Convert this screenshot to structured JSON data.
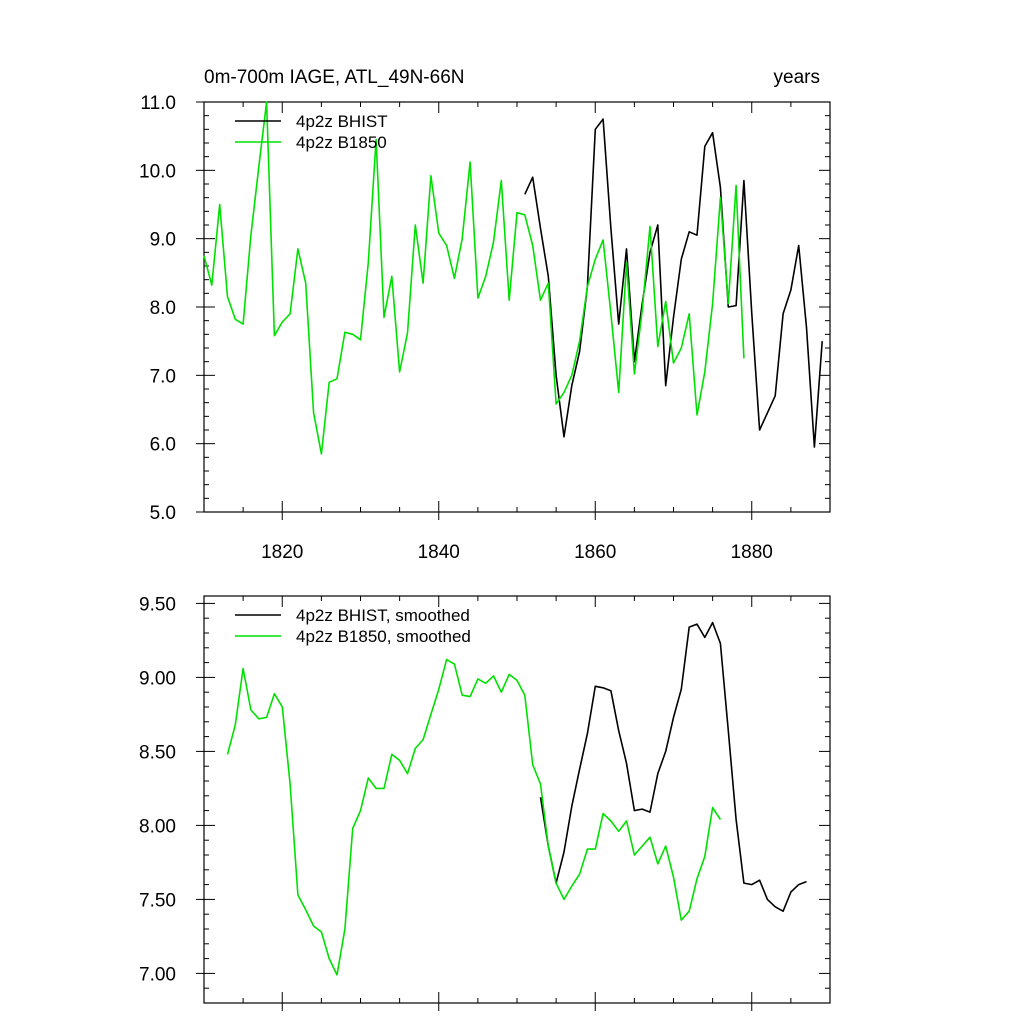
{
  "chart_data": [
    {
      "type": "line",
      "title": "0m-700m IAGE, ATL_49N-66N",
      "title_right": "years",
      "xlim": [
        1810,
        1890
      ],
      "ylim": [
        5.0,
        11.0
      ],
      "x_ticks": [
        1820,
        1840,
        1860,
        1880
      ],
      "y_ticks": [
        5.0,
        6.0,
        7.0,
        8.0,
        9.0,
        10.0,
        11.0
      ],
      "y_tick_decimals": 1,
      "legend_position": "top-left",
      "series": [
        {
          "name": "4p2z BHIST",
          "color": "#000000",
          "x": [
            1851,
            1852,
            1853,
            1854,
            1855,
            1856,
            1857,
            1858,
            1859,
            1860,
            1861,
            1862,
            1863,
            1864,
            1865,
            1866,
            1867,
            1868,
            1869,
            1870,
            1871,
            1872,
            1873,
            1874,
            1875,
            1876,
            1877,
            1878,
            1879,
            1880,
            1881,
            1882,
            1883,
            1884,
            1885,
            1886,
            1887,
            1888,
            1889
          ],
          "y": [
            9.65,
            9.9,
            9.15,
            8.45,
            7.0,
            6.1,
            6.85,
            7.35,
            8.3,
            10.6,
            10.75,
            9.15,
            7.75,
            8.85,
            7.2,
            8.05,
            8.8,
            9.2,
            6.85,
            7.85,
            8.7,
            9.1,
            9.05,
            10.35,
            10.55,
            9.75,
            8.0,
            8.02,
            9.85,
            7.9,
            6.2,
            6.45,
            6.7,
            7.9,
            8.25,
            8.9,
            7.7,
            5.95,
            7.5
          ]
        },
        {
          "name": "4p2z B1850",
          "color": "#00e000",
          "x": [
            1810,
            1811,
            1812,
            1813,
            1814,
            1815,
            1816,
            1817,
            1818,
            1819,
            1820,
            1821,
            1822,
            1823,
            1824,
            1825,
            1826,
            1827,
            1828,
            1829,
            1830,
            1831,
            1832,
            1833,
            1834,
            1835,
            1836,
            1837,
            1838,
            1839,
            1840,
            1841,
            1842,
            1843,
            1844,
            1845,
            1846,
            1847,
            1848,
            1849,
            1850,
            1851,
            1852,
            1853,
            1854,
            1855,
            1856,
            1857,
            1858,
            1859,
            1860,
            1861,
            1862,
            1863,
            1864,
            1865,
            1866,
            1867,
            1868,
            1869,
            1870,
            1871,
            1872,
            1873,
            1874,
            1875,
            1876,
            1877,
            1878,
            1879
          ],
          "y": [
            8.75,
            8.32,
            9.5,
            8.15,
            7.82,
            7.75,
            9.05,
            10.05,
            11.0,
            7.58,
            7.78,
            7.9,
            8.85,
            8.35,
            6.45,
            5.85,
            6.9,
            6.95,
            7.63,
            7.6,
            7.52,
            8.65,
            10.45,
            7.85,
            8.45,
            7.05,
            7.62,
            9.2,
            8.35,
            9.92,
            9.08,
            8.9,
            8.42,
            9.0,
            10.12,
            8.13,
            8.45,
            8.95,
            9.85,
            8.1,
            9.38,
            9.35,
            8.9,
            8.1,
            8.35,
            6.58,
            6.75,
            7.0,
            7.5,
            8.3,
            8.7,
            8.98,
            7.9,
            6.75,
            8.65,
            7.02,
            7.95,
            9.18,
            7.42,
            8.08,
            7.18,
            7.4,
            7.9,
            6.42,
            7.05,
            8.05,
            9.6,
            8.05,
            9.78,
            7.25
          ]
        }
      ]
    },
    {
      "type": "line",
      "xlim": [
        1810,
        1890
      ],
      "ylim": [
        6.8,
        9.55
      ],
      "x_ticks": [
        1820,
        1840,
        1860,
        1880
      ],
      "x_tick_labels_shown": false,
      "y_ticks": [
        7.0,
        7.5,
        8.0,
        8.5,
        9.0,
        9.5
      ],
      "y_tick_decimals": 2,
      "legend_position": "top-left",
      "series": [
        {
          "name": "4p2z BHIST, smoothed",
          "color": "#000000",
          "x": [
            1853,
            1854,
            1855,
            1856,
            1857,
            1858,
            1859,
            1860,
            1861,
            1862,
            1863,
            1864,
            1865,
            1866,
            1867,
            1868,
            1869,
            1870,
            1871,
            1872,
            1873,
            1874,
            1875,
            1876,
            1877,
            1878,
            1879,
            1880,
            1881,
            1882,
            1883,
            1884,
            1885,
            1886,
            1887
          ],
          "y": [
            8.19,
            7.86,
            7.61,
            7.82,
            8.13,
            8.38,
            8.62,
            8.94,
            8.93,
            8.91,
            8.64,
            8.42,
            8.1,
            8.11,
            8.09,
            8.35,
            8.5,
            8.73,
            8.92,
            9.34,
            9.36,
            9.27,
            9.37,
            9.23,
            8.64,
            8.04,
            7.61,
            7.6,
            7.63,
            7.5,
            7.45,
            7.42,
            7.55,
            7.6,
            7.62
          ]
        },
        {
          "name": "4p2z B1850, smoothed",
          "color": "#00e000",
          "x": [
            1813,
            1814,
            1815,
            1816,
            1817,
            1818,
            1819,
            1820,
            1821,
            1822,
            1823,
            1824,
            1825,
            1826,
            1827,
            1828,
            1829,
            1830,
            1831,
            1832,
            1833,
            1834,
            1835,
            1836,
            1837,
            1838,
            1839,
            1840,
            1841,
            1842,
            1843,
            1844,
            1845,
            1846,
            1847,
            1848,
            1849,
            1850,
            1851,
            1852,
            1853,
            1854,
            1855,
            1856,
            1857,
            1858,
            1859,
            1860,
            1861,
            1862,
            1863,
            1864,
            1865,
            1866,
            1867,
            1868,
            1869,
            1870,
            1871,
            1872,
            1873,
            1874,
            1875,
            1876
          ],
          "y": [
            8.48,
            8.68,
            9.06,
            8.78,
            8.72,
            8.73,
            8.89,
            8.8,
            8.28,
            7.53,
            7.43,
            7.32,
            7.28,
            7.1,
            6.99,
            7.3,
            7.98,
            8.1,
            8.32,
            8.25,
            8.25,
            8.48,
            8.44,
            8.35,
            8.52,
            8.58,
            8.75,
            8.92,
            9.12,
            9.09,
            8.88,
            8.87,
            8.99,
            8.96,
            9.01,
            8.9,
            9.02,
            8.98,
            8.88,
            8.41,
            8.28,
            7.86,
            7.61,
            7.5,
            7.59,
            7.67,
            7.84,
            7.84,
            8.08,
            8.03,
            7.96,
            8.03,
            7.8,
            7.86,
            7.92,
            7.74,
            7.86,
            7.65,
            7.36,
            7.42,
            7.64,
            7.79,
            8.12,
            8.04
          ]
        }
      ]
    }
  ]
}
